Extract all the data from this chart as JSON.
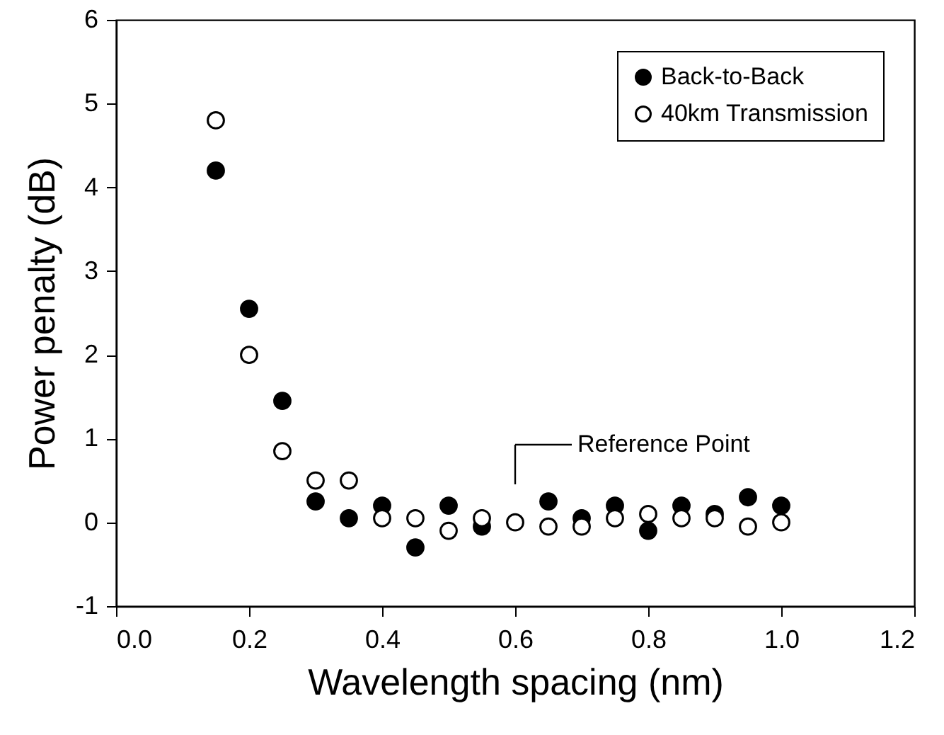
{
  "chart_data": {
    "type": "scatter",
    "xlabel": "Wavelength spacing (nm)",
    "ylabel": "Power penalty (dB)",
    "x": [
      0.15,
      0.2,
      0.25,
      0.3,
      0.35,
      0.4,
      0.45,
      0.5,
      0.55,
      0.6,
      0.65,
      0.7,
      0.75,
      0.8,
      0.85,
      0.9,
      0.95,
      1.0
    ],
    "series": [
      {
        "name": "Back-to-Back",
        "color": "#000000",
        "values": [
          4.2,
          2.55,
          1.45,
          0.25,
          0.05,
          0.2,
          -0.3,
          0.2,
          -0.05,
          null,
          0.25,
          0.05,
          0.2,
          -0.1,
          0.2,
          0.1,
          0.3,
          0.2
        ]
      },
      {
        "name": "40km Transmission",
        "color": "#ffffff",
        "values": [
          4.8,
          2.0,
          0.85,
          0.5,
          0.5,
          0.05,
          0.05,
          -0.1,
          0.05,
          0.0,
          -0.05,
          -0.05,
          0.05,
          0.1,
          0.05,
          0.05,
          -0.05,
          0.0
        ]
      }
    ],
    "xlim": [
      0,
      1.2
    ],
    "xticks": [
      {
        "value": 0,
        "label": "0.0"
      },
      0.2,
      0.4,
      0.6,
      0.8,
      {
        "value": 1,
        "label": "1.0"
      },
      1.2
    ],
    "ylim": [
      -1,
      6
    ],
    "yticks": [
      -1,
      0,
      1,
      2,
      3,
      4,
      5,
      6
    ],
    "annotations": [
      "Reference Point"
    ],
    "legend": "top right",
    "marker": "circle",
    "grid": false
  }
}
